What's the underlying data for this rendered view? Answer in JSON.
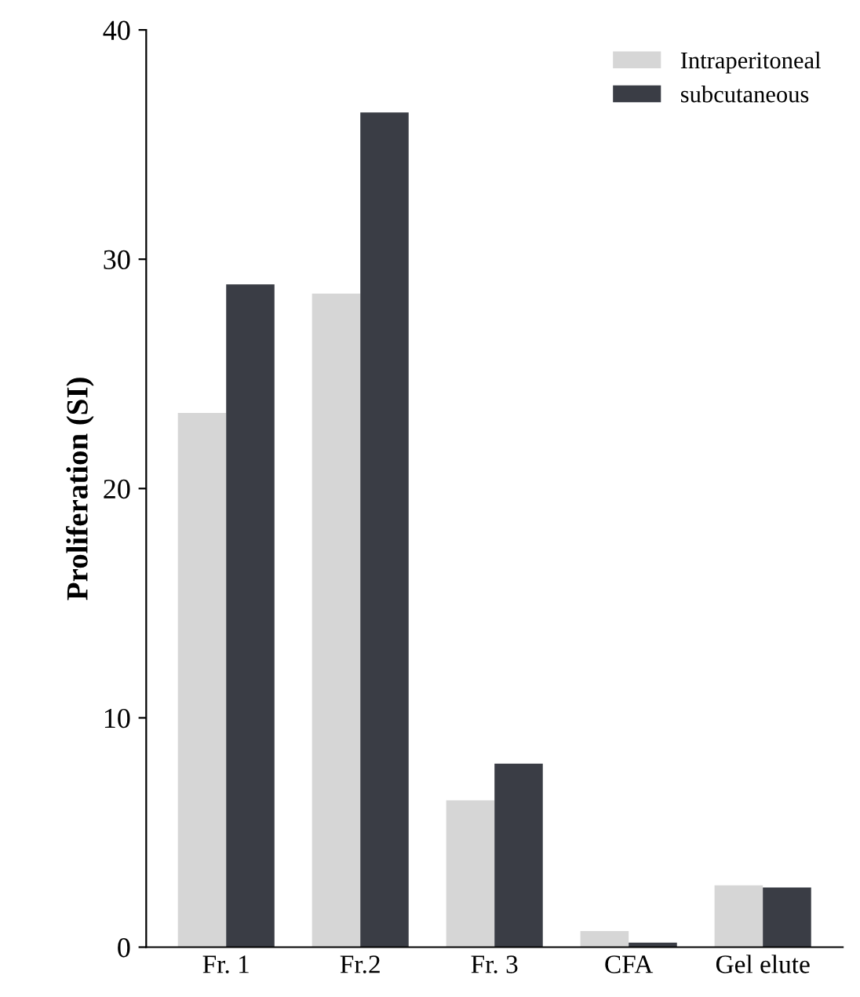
{
  "chart_data": {
    "type": "bar",
    "ylabel": "Proliferation (SI)",
    "categories": [
      "Fr. 1",
      "Fr.2",
      "Fr. 3",
      "CFA",
      "Gel elute"
    ],
    "series": [
      {
        "name": "Intraperitoneal",
        "color": "#d6d6d6",
        "values": [
          23.3,
          28.5,
          6.4,
          0.7,
          2.7
        ]
      },
      {
        "name": "subcutaneous",
        "color": "#3a3d45",
        "values": [
          28.9,
          36.4,
          8.0,
          0.2,
          2.6
        ]
      }
    ],
    "ylim": [
      0,
      40
    ],
    "yticks": [
      0,
      10,
      20,
      30,
      40
    ],
    "grid": false,
    "legend": "top right"
  }
}
